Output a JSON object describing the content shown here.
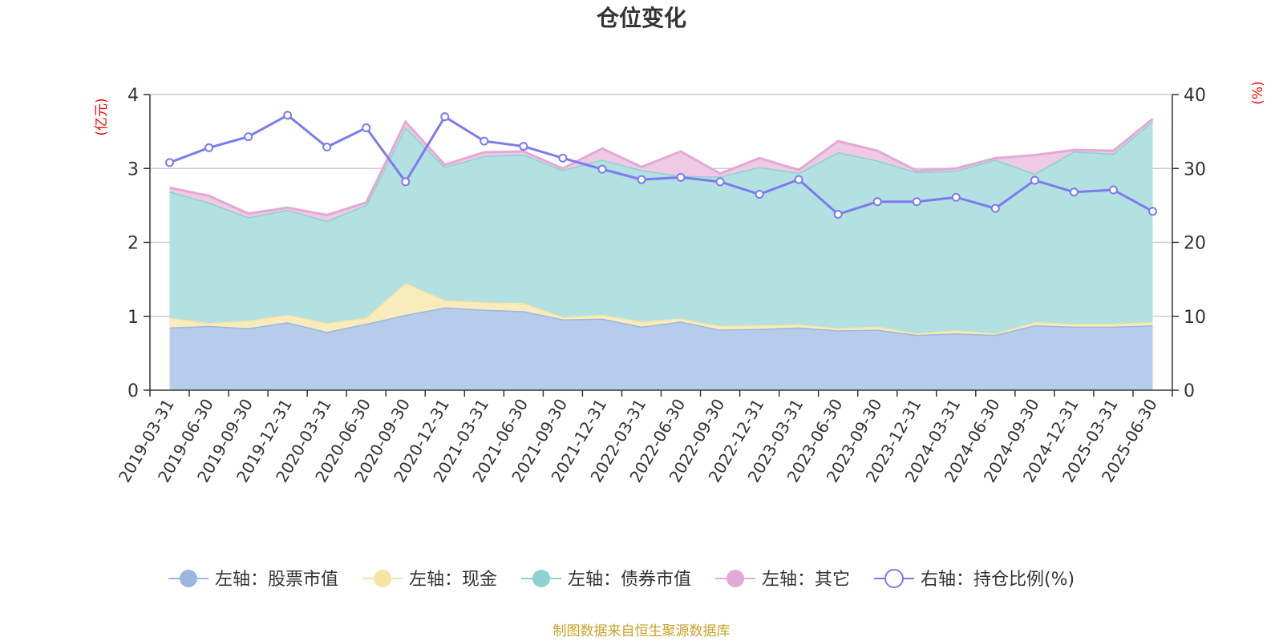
{
  "chart_data": {
    "type": "area",
    "title": "仓位变化",
    "left_axis_unit": "(亿元)",
    "right_axis_unit": "(%)",
    "left_ylim": [
      0,
      4
    ],
    "left_ticks": [
      "0",
      "1",
      "2",
      "3",
      "4"
    ],
    "right_ylim": [
      0,
      40
    ],
    "right_ticks": [
      "0",
      "10",
      "20",
      "30",
      "40"
    ],
    "grid": true,
    "legend_position": "bottom",
    "categories": [
      "2019-03-31",
      "2019-06-30",
      "2019-09-30",
      "2019-12-31",
      "2020-03-31",
      "2020-06-30",
      "2020-09-30",
      "2020-12-31",
      "2021-03-31",
      "2021-06-30",
      "2021-09-30",
      "2021-12-31",
      "2022-03-31",
      "2022-06-30",
      "2022-09-30",
      "2022-12-31",
      "2023-03-31",
      "2023-06-30",
      "2023-09-30",
      "2023-12-31",
      "2024-03-31",
      "2024-06-30",
      "2024-09-30",
      "2024-12-31",
      "2025-03-31",
      "2025-06-30"
    ],
    "series": [
      {
        "name": "左轴：股票市值",
        "axis": "left",
        "kind": "stacked-area",
        "color": "#9bb7e0",
        "fill": "#b7cbeb",
        "values": [
          0.85,
          0.87,
          0.84,
          0.92,
          0.79,
          0.9,
          1.02,
          1.12,
          1.09,
          1.07,
          0.96,
          0.97,
          0.86,
          0.93,
          0.82,
          0.83,
          0.85,
          0.81,
          0.82,
          0.75,
          0.77,
          0.75,
          0.88,
          0.86,
          0.86,
          0.88
        ]
      },
      {
        "name": "左轴：现金",
        "axis": "left",
        "kind": "stacked-area",
        "color": "#f6e4a2",
        "fill": "#f8ecbd",
        "values": [
          0.13,
          0.04,
          0.1,
          0.1,
          0.12,
          0.08,
          0.43,
          0.1,
          0.1,
          0.11,
          0.03,
          0.05,
          0.07,
          0.04,
          0.05,
          0.05,
          0.04,
          0.03,
          0.04,
          0.02,
          0.04,
          0.02,
          0.04,
          0.04,
          0.04,
          0.04
        ]
      },
      {
        "name": "左轴：债券市值",
        "axis": "left",
        "kind": "stacked-area",
        "color": "#8fd1d1",
        "fill": "#b3e0e0",
        "values": [
          1.71,
          1.63,
          1.4,
          1.42,
          1.38,
          1.53,
          2.11,
          1.8,
          1.98,
          2.01,
          1.99,
          2.1,
          2.05,
          1.93,
          2.02,
          2.14,
          2.05,
          2.38,
          2.25,
          2.18,
          2.16,
          2.35,
          2.01,
          2.33,
          2.3,
          2.72
        ]
      },
      {
        "name": "左轴：其它",
        "axis": "left",
        "kind": "stacked-area",
        "color": "#e3a9d5",
        "fill": "#eecae5",
        "values": [
          0.05,
          0.09,
          0.05,
          0.03,
          0.08,
          0.03,
          0.07,
          0.03,
          0.05,
          0.04,
          0.02,
          0.15,
          0.04,
          0.33,
          0.04,
          0.12,
          0.04,
          0.15,
          0.13,
          0.02,
          0.03,
          0.02,
          0.25,
          0.02,
          0.04,
          0.03
        ]
      },
      {
        "name": "右轴：持仓比例(%)",
        "axis": "right",
        "kind": "line",
        "color": "#7b7bf0",
        "values": [
          30.8,
          32.8,
          34.3,
          37.2,
          32.9,
          35.5,
          28.2,
          37.0,
          33.7,
          33.0,
          31.4,
          29.9,
          28.5,
          28.8,
          28.2,
          26.5,
          28.5,
          23.8,
          25.5,
          25.5,
          26.1,
          24.6,
          28.4,
          26.8,
          27.1,
          24.2
        ]
      }
    ]
  },
  "footer": {
    "source": "制图数据来自恒生聚源数据库"
  }
}
